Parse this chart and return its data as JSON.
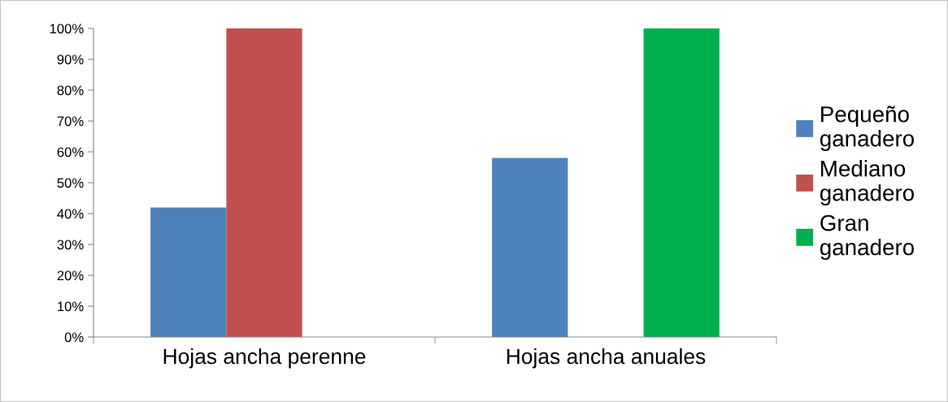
{
  "chart_data": {
    "type": "bar",
    "categories": [
      "Hojas ancha perenne",
      "Hojas ancha anuales"
    ],
    "series": [
      {
        "name": "Pequeño ganadero",
        "color": "#4f81bd",
        "values": [
          42,
          58
        ]
      },
      {
        "name": "Mediano ganadero",
        "color": "#c0504d",
        "values": [
          100,
          null
        ]
      },
      {
        "name": "Gran ganadero",
        "color": "#00b050",
        "values": [
          null,
          100
        ]
      }
    ],
    "ylim": [
      0,
      100
    ],
    "yticks": [
      {
        "value": 0,
        "label": "0%"
      },
      {
        "value": 10,
        "label": "10%"
      },
      {
        "value": 20,
        "label": "20%"
      },
      {
        "value": 30,
        "label": "30%"
      },
      {
        "value": 40,
        "label": "40%"
      },
      {
        "value": 50,
        "label": "50%"
      },
      {
        "value": 60,
        "label": "60%"
      },
      {
        "value": 70,
        "label": "70%"
      },
      {
        "value": 80,
        "label": "80%"
      },
      {
        "value": 90,
        "label": "90%"
      },
      {
        "value": 100,
        "label": "100%"
      }
    ],
    "grid": false,
    "legend": "right"
  }
}
